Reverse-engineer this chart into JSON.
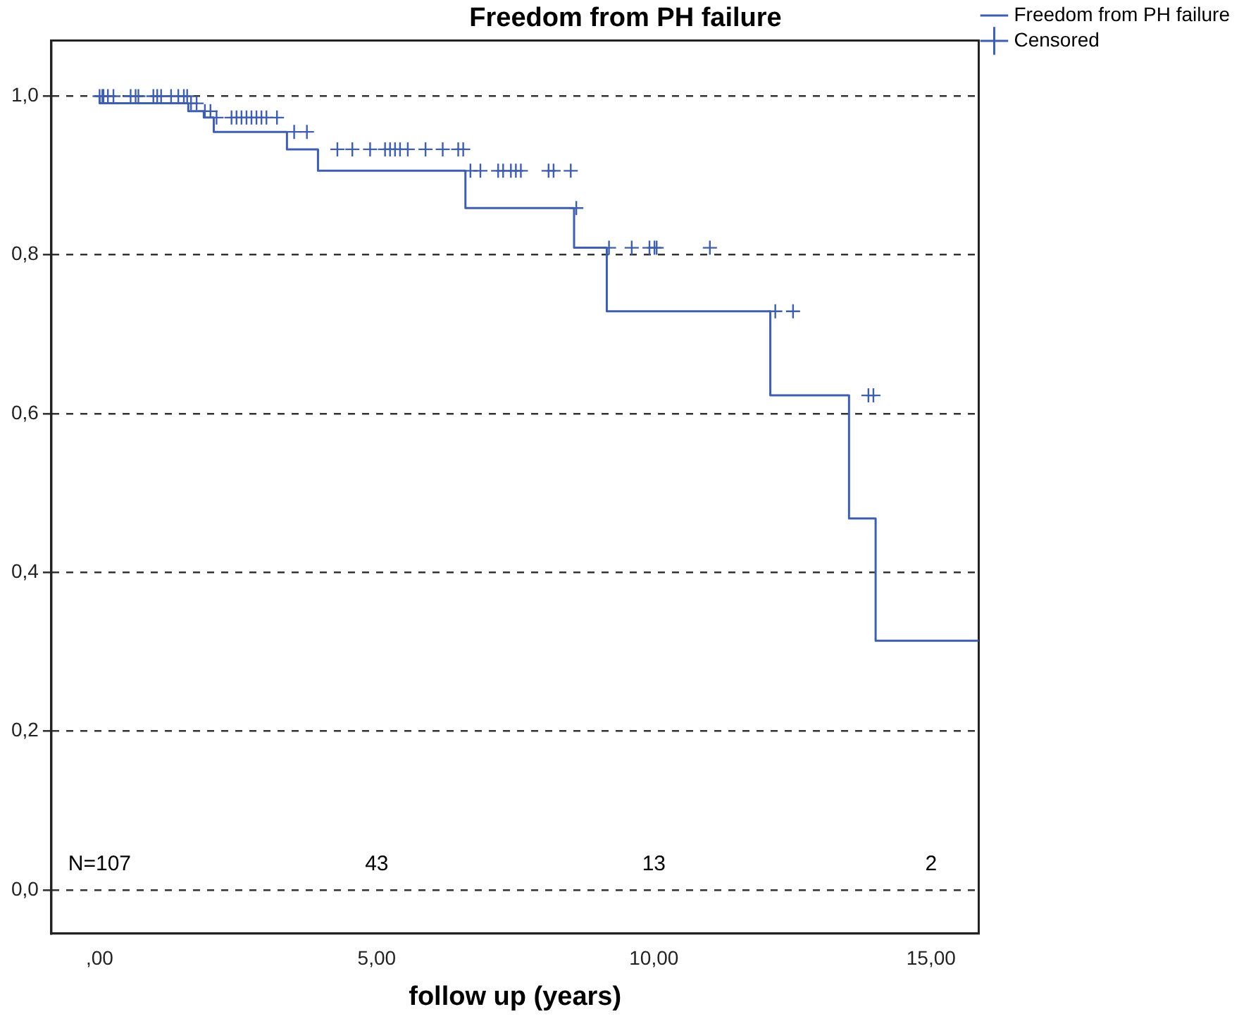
{
  "chart_data": {
    "type": "step",
    "title": "Freedom from PH failure",
    "xlabel": "follow up (years)",
    "xlim": [
      -0.87,
      15.86
    ],
    "ylim": [
      -0.055,
      1.07
    ],
    "xticks": [
      {
        "value": 0,
        "label": ",00"
      },
      {
        "value": 5,
        "label": "5,00"
      },
      {
        "value": 10,
        "label": "10,00"
      },
      {
        "value": 15,
        "label": "15,00"
      }
    ],
    "yticks": [
      {
        "value": 0,
        "label": "0,0"
      },
      {
        "value": 0.2,
        "label": "0,2"
      },
      {
        "value": 0.4,
        "label": "0,4"
      },
      {
        "value": 0.6,
        "label": "0,6"
      },
      {
        "value": 0.8,
        "label": "0,8"
      },
      {
        "value": 1,
        "label": "1,0"
      }
    ],
    "grid": "y",
    "legend": "top right",
    "series": [
      {
        "name": "Freedom from PH failure",
        "color": "#3f5fae",
        "marker": "none",
        "x": [
          0,
          1.6,
          1.88,
          2.06,
          3.38,
          3.94,
          6.6,
          8.56,
          9.15,
          12.1,
          13.52,
          14.0,
          14.34,
          15.86
        ],
        "values": [
          1.0,
          0.991,
          0.981,
          0.973,
          0.955,
          0.933,
          0.906,
          0.859,
          0.809,
          0.729,
          0.623,
          0.468,
          0.314,
          0.314
        ]
      },
      {
        "name": "Censored",
        "type": "scatter",
        "color": "#3f5fae",
        "marker": "cross",
        "x": [
          0.0,
          0.05,
          0.07,
          0.15,
          0.25,
          0.56,
          0.65,
          0.7,
          0.97,
          1.04,
          1.11,
          1.29,
          1.42,
          1.52,
          1.58,
          1.65,
          1.75,
          1.9,
          2.0,
          2.11,
          2.38,
          2.47,
          2.56,
          2.65,
          2.74,
          2.83,
          2.92,
          3.01,
          3.2,
          3.51,
          3.74,
          4.29,
          4.56,
          4.88,
          5.15,
          5.24,
          5.33,
          5.42,
          5.56,
          5.88,
          6.19,
          6.47,
          6.56,
          6.69,
          6.87,
          7.19,
          7.28,
          7.42,
          7.51,
          7.6,
          8.1,
          8.19,
          8.5,
          8.6,
          9.19,
          9.6,
          9.92,
          10.01,
          10.05,
          11.01,
          12.19,
          12.51,
          13.87,
          13.96
        ],
        "values": [
          1.0,
          1.0,
          1.0,
          1.0,
          1.0,
          1.0,
          1.0,
          1.0,
          1.0,
          1.0,
          1.0,
          1.0,
          1.0,
          1.0,
          1.0,
          0.991,
          0.991,
          0.981,
          0.981,
          0.973,
          0.973,
          0.973,
          0.973,
          0.973,
          0.973,
          0.973,
          0.973,
          0.973,
          0.973,
          0.955,
          0.955,
          0.933,
          0.933,
          0.933,
          0.933,
          0.933,
          0.933,
          0.933,
          0.933,
          0.933,
          0.933,
          0.933,
          0.933,
          0.906,
          0.906,
          0.906,
          0.906,
          0.906,
          0.906,
          0.906,
          0.906,
          0.906,
          0.906,
          0.859,
          0.809,
          0.809,
          0.809,
          0.809,
          0.809,
          0.809,
          0.729,
          0.729,
          0.623,
          0.623
        ]
      }
    ],
    "annotations": [
      "N=107",
      "43",
      "13",
      "2"
    ]
  }
}
